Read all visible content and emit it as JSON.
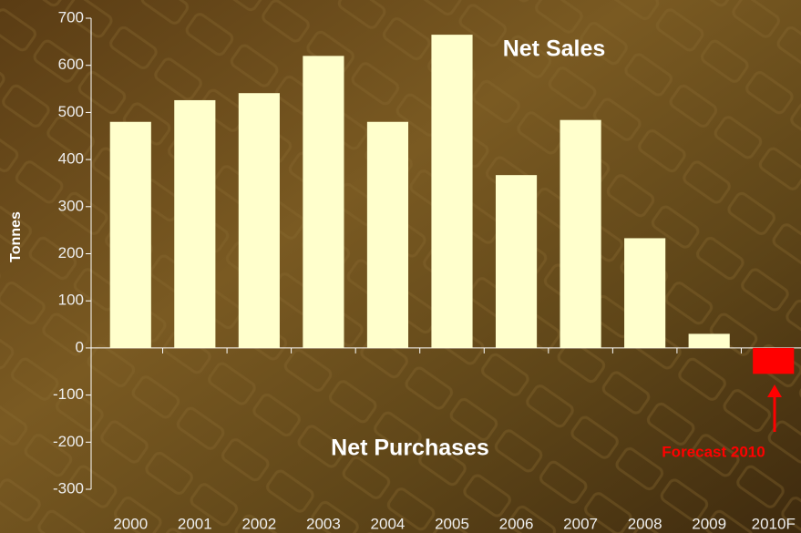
{
  "chart_data": {
    "type": "bar",
    "y_label": "Tonnes",
    "categories": [
      "2000",
      "2001",
      "2002",
      "2003",
      "2004",
      "2005",
      "2006",
      "2007",
      "2008",
      "2009",
      "2010F"
    ],
    "values": [
      480,
      526,
      541,
      620,
      480,
      665,
      367,
      484,
      233,
      30,
      -55
    ],
    "colors": [
      "#ffffcc",
      "#ffffcc",
      "#ffffcc",
      "#ffffcc",
      "#ffffcc",
      "#ffffcc",
      "#ffffcc",
      "#ffffcc",
      "#ffffcc",
      "#ffffcc",
      "#ff0000"
    ],
    "ylim": [
      -300,
      700
    ],
    "yticks": [
      -300,
      -200,
      -100,
      0,
      100,
      200,
      300,
      400,
      500,
      600,
      700
    ],
    "annotations": [
      "Net Sales",
      "Net Purchases",
      "Forecast 2010"
    ]
  }
}
